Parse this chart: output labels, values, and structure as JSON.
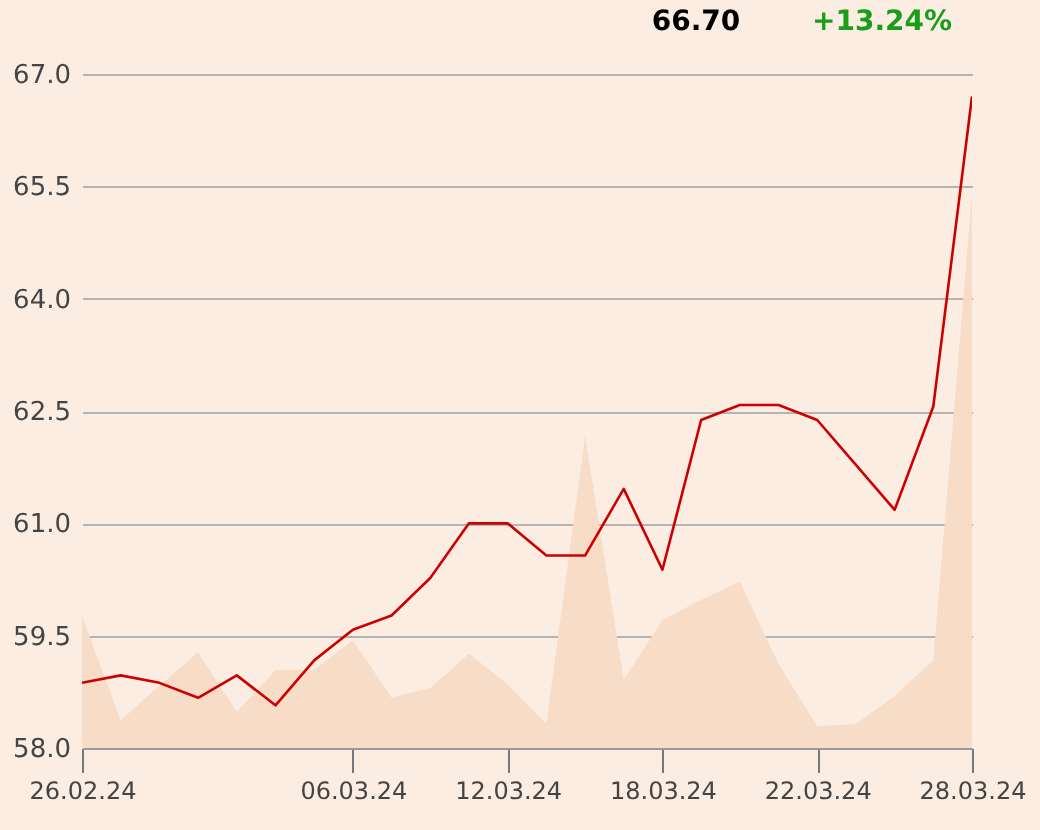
{
  "chart_data": {
    "type": "line",
    "annotations": [
      "66.70",
      "+13.24%"
    ],
    "categories": [
      "26.02.24",
      null,
      null,
      null,
      null,
      null,
      null,
      "06.03.24",
      null,
      null,
      null,
      "12.03.24",
      null,
      null,
      null,
      "18.03.24",
      null,
      null,
      null,
      "22.03.24",
      null,
      null,
      null,
      "28.03.24"
    ],
    "series": [
      {
        "type": "area",
        "color": "#f7dcc7",
        "values": [
          59.76,
          58.37,
          58.83,
          59.28,
          58.48,
          59.04,
          59.04,
          59.44,
          58.67,
          58.8,
          59.26,
          58.85,
          58.32,
          62.17,
          58.91,
          59.71,
          59.98,
          60.22,
          59.12,
          58.29,
          58.32,
          58.69,
          59.18,
          65.4
        ]
      },
      {
        "color": "#cc0000",
        "values": [
          58.87,
          58.97,
          58.87,
          58.67,
          58.97,
          58.57,
          59.17,
          59.58,
          59.77,
          60.27,
          61.0,
          61.0,
          60.57,
          60.57,
          61.46,
          60.38,
          62.38,
          62.58,
          62.58,
          62.38,
          61.78,
          61.18,
          62.56,
          66.7
        ]
      }
    ],
    "ylim": [
      58.0,
      67.0
    ],
    "yticks": [
      {
        "value": 58,
        "label": "58.0"
      },
      {
        "value": 59.5,
        "label": "59.5"
      },
      {
        "value": 61,
        "label": "61.0"
      },
      {
        "value": 62.5,
        "label": "62.5"
      },
      {
        "value": 64,
        "label": "64.0"
      },
      {
        "value": 65.5,
        "label": "65.5"
      },
      {
        "value": 67,
        "label": "67.0"
      }
    ],
    "grid": "y",
    "marker": "none",
    "line_style": "solid"
  }
}
